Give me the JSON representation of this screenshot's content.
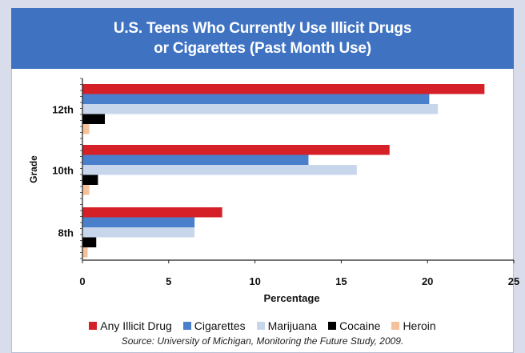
{
  "chart_data": {
    "type": "bar",
    "orientation": "horizontal",
    "title_line1": "U.S. Teens Who Currently Use Illicit Drugs",
    "title_line2": "or Cigarettes (Past Month Use)",
    "xlabel": "Percentage",
    "ylabel": "Grade",
    "xlim": [
      0,
      25
    ],
    "xticks": [
      "0",
      "5",
      "10",
      "15",
      "20",
      "25"
    ],
    "categories": [
      "12th",
      "10th",
      "8th"
    ],
    "series": [
      {
        "name": "Any Illicit Drug",
        "color": "#d62027",
        "values": [
          23.3,
          17.8,
          8.1
        ]
      },
      {
        "name": "Cigarettes",
        "color": "#4a7fcc",
        "values": [
          20.1,
          13.1,
          6.5
        ]
      },
      {
        "name": "Marijuana",
        "color": "#c8d6ec",
        "values": [
          20.6,
          15.9,
          6.5
        ]
      },
      {
        "name": "Cocaine",
        "color": "#000000",
        "values": [
          1.3,
          0.9,
          0.8
        ]
      },
      {
        "name": "Heroin",
        "color": "#f5c19a",
        "values": [
          0.4,
          0.4,
          0.3
        ]
      }
    ],
    "grid": false,
    "legend_position": "bottom",
    "source": "Source: University of Michigan, Monitoring the Future Study, 2009."
  }
}
